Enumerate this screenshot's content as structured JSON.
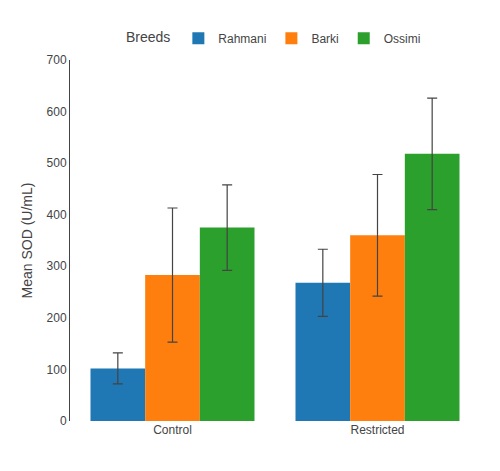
{
  "chart_data": {
    "type": "bar",
    "ylabel": "Mean SOD (U/mL)",
    "categories": [
      "Control",
      "Restricted"
    ],
    "series": [
      {
        "name": "Rahmani",
        "values": [
          102,
          268
        ],
        "errors": [
          30,
          65
        ]
      },
      {
        "name": "Barki",
        "values": [
          283,
          360
        ],
        "errors": [
          130,
          118
        ]
      },
      {
        "name": "Ossimi",
        "values": [
          375,
          518
        ],
        "errors": [
          83,
          108
        ]
      }
    ],
    "ylim": [
      0,
      700
    ],
    "yticks": [
      0,
      100,
      200,
      300,
      400,
      500,
      600,
      700
    ],
    "legend_title": "Breeds",
    "legend": "top",
    "grid": false
  }
}
